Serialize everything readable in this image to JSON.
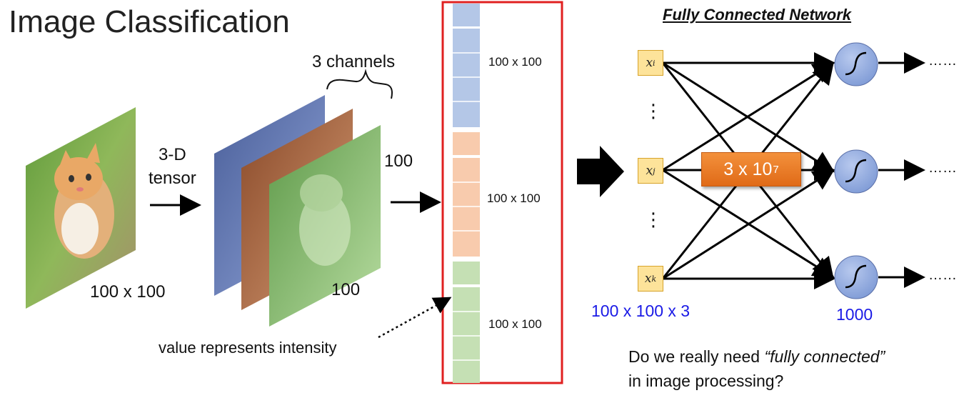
{
  "title": "Image Classification",
  "image_size_label": "100 x 100",
  "tensor_label_line1": "3-D",
  "tensor_label_line2": "tensor",
  "channels_label": "3 channels",
  "width_label": "100",
  "height_label": "100",
  "segments": [
    {
      "label": "100 x 100",
      "color": "#b4c7e7"
    },
    {
      "label": "100 x 100",
      "color": "#f8cbad"
    },
    {
      "label": "100 x 100",
      "color": "#c5e0b4"
    }
  ],
  "intensity_label": "value represents intensity",
  "network": {
    "title": "Fully Connected Network",
    "inputs": [
      {
        "symbol": "x",
        "sub": "i"
      },
      {
        "symbol": "x",
        "sub": "j"
      },
      {
        "symbol": "x",
        "sub": "k"
      }
    ],
    "weights_base": "3 x 10",
    "weights_exp": "7",
    "input_size_label": "100 x 100 x 3",
    "output_size_label": "1000",
    "ellipsis": "……",
    "vertical_dots": "⋮"
  },
  "question_prefix": "Do we really need ",
  "question_emph": "“fully connected”",
  "question_line2": "in image processing?",
  "colors": {
    "red_frame": "#e02020",
    "neuron_fill": "#8fa8dc",
    "blue_text": "#1a1ae6",
    "orange": "#e87722"
  }
}
